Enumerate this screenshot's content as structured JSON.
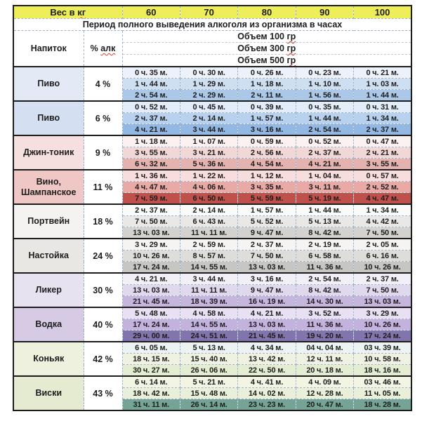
{
  "colors": {
    "header_yellow": "#eeee58",
    "solid_border": "#1c1c1c",
    "dashed_line": "#9db3c9",
    "spellcheck_red": "#d93a2f",
    "text": "#1d1d1d",
    "page_bg": "#ffffff"
  },
  "header": {
    "weight_label": {
      "text": "Вес в ",
      "misspelled": "кг"
    },
    "weights": [
      "60",
      "70",
      "80",
      "90",
      "100"
    ],
    "period_title": "Период полного выведения алкоголя из организма в часах",
    "drink_col_label": "Напиток",
    "pct_col_label": {
      "text": "% ",
      "misspelled": "алк"
    },
    "volume_lines": [
      {
        "text": "Объем 100 ",
        "misspelled": "гр"
      },
      {
        "text": "Объем 300 ",
        "misspelled": "гр"
      },
      {
        "text": "Объем 500 ",
        "misspelled": "гр"
      }
    ]
  },
  "chart_data": {
    "type": "table",
    "title": "Период полного выведения алкоголя из организма в часах",
    "weights_kg": [
      60,
      70,
      80,
      90,
      100
    ],
    "volumes_g": [
      100,
      300,
      500
    ],
    "sections": [
      {
        "drink": "Пиво",
        "percent": "4 %",
        "label_bg": "#e3eaf5",
        "row_bgs": [
          "#edf2fa",
          "#cfdff2",
          "#abc8e8"
        ],
        "rows": [
          [
            "0 ч. 35 м.",
            "0 ч. 30 м.",
            "0 ч. 26 м.",
            "0 ч. 23 м.",
            "0 ч. 21 м."
          ],
          [
            "1 ч. 44 м.",
            "1 ч. 29 м.",
            "1 ч. 18 м.",
            "1 ч. 10 м.",
            "1 ч. 03 м."
          ],
          [
            "2 ч. 54 м.",
            "2 ч. 29 м.",
            "2 ч. 11 м.",
            "1 ч. 56 м.",
            "1 ч. 44 м."
          ]
        ]
      },
      {
        "drink": "Пиво",
        "percent": "6 %",
        "label_bg": "#d4e0f1",
        "row_bgs": [
          "#e2edf9",
          "#b7d1ee",
          "#92b8e3"
        ],
        "rows": [
          [
            "0 ч. 52 м.",
            "0 ч. 45 м.",
            "0 ч. 39 м.",
            "0 ч. 35 м.",
            "0 ч. 31 м."
          ],
          [
            "2 ч. 37 м.",
            "2 ч. 14 м.",
            "1 ч. 57 м.",
            "1 ч. 44 м.",
            "1 ч. 34 м."
          ],
          [
            "4 ч. 21 м.",
            "3 ч. 44 м.",
            "3 ч. 16 м.",
            "2 ч. 54 м.",
            "2 ч. 37 м."
          ]
        ]
      },
      {
        "drink": "Джин-тоник",
        "percent": "9 %",
        "label_bg": "#f6e0df",
        "row_bgs": [
          "#faf1f0",
          "#f1d7d5",
          "#e5b3af"
        ],
        "rows": [
          [
            "1 ч. 18 м.",
            "1 ч. 07 м.",
            "0 ч. 59 м.",
            "0 ч. 52 м.",
            "0 ч. 47 м."
          ],
          [
            "3 ч. 55 м.",
            "3 ч. 21 м.",
            "2 ч. 56 м.",
            "2 ч. 37 м.",
            "2 ч. 21 м."
          ],
          [
            "6 ч. 32 м.",
            "5 ч. 36 м.",
            "4 ч. 54 м.",
            "4 ч. 21 м.",
            "3 ч. 55 м."
          ]
        ]
      },
      {
        "drink": "Вино,\nШампанское",
        "percent": "11 %",
        "label_bg": "#efc7c5",
        "row_bgs": [
          "#f7dddb",
          "#e9aaa6",
          "#c0504a"
        ],
        "rows": [
          [
            "1 ч. 36 м.",
            "1 ч. 22 м.",
            "1 ч. 12 м.",
            "1 ч. 04 м.",
            "0 ч. 57 м."
          ],
          [
            "4 ч. 47 м.",
            "4 ч. 06 м.",
            "3 ч. 35 м.",
            "3 ч. 11 м.",
            "2 ч. 52 м."
          ],
          [
            "7 ч. 59 м.",
            "6 ч. 50 м.",
            "5 ч. 59 м.",
            "5 ч. 19 м.",
            "4 ч. 47 м."
          ]
        ]
      },
      {
        "drink": "Портвейн",
        "percent": "18 %",
        "label_bg": "#f5f3f1",
        "row_bgs": [
          "#fafaf9",
          "#e9e8e6",
          "#d3d2cf"
        ],
        "rows": [
          [
            "2 ч. 37 м.",
            "2 ч. 14 м.",
            "1 ч. 57 м.",
            "1 ч. 44 м.",
            "1 ч. 34 м."
          ],
          [
            "7 ч. 50 м.",
            "6 ч. 43 м.",
            "5 ч. 52 м.",
            "5 ч. 13 м.",
            "4 ч. 42 м."
          ],
          [
            "13 ч. 03 м.",
            "11 ч. 11 м.",
            "9 ч. 47 м.",
            "8 ч. 42 м.",
            "7 ч. 50 м."
          ]
        ]
      },
      {
        "drink": "Настойка",
        "percent": "24 %",
        "label_bg": "#e9e7e3",
        "row_bgs": [
          "#f5f4f2",
          "#dfddda",
          "#c8c6c2"
        ],
        "rows": [
          [
            "3 ч. 29 м.",
            "2 ч. 59 м.",
            "2 ч. 37 м.",
            "2 ч. 19 м.",
            "2 ч. 05 м."
          ],
          [
            "10 ч. 26 м.",
            "8 ч. 57 м.",
            "7 ч. 50 м.",
            "6 ч. 58 м.",
            "6 ч. 16 м."
          ],
          [
            "17 ч. 24 м.",
            "14 ч. 55 м.",
            "13 ч. 03 м.",
            "11 ч. 36 м.",
            "10 ч. 26 м."
          ]
        ]
      },
      {
        "drink": "Ликер",
        "percent": "30 %",
        "label_bg": "#e7e2ef",
        "row_bgs": [
          "#f2eff7",
          "#e0d8ed",
          "#c6b6de"
        ],
        "rows": [
          [
            "4 ч. 21 м.",
            "3 ч. 44 м.",
            "3 ч. 16 м.",
            "2 ч. 54 м.",
            "2 ч. 37 м."
          ],
          [
            "13 ч. 03 м.",
            "11 ч. 11 м.",
            "9 ч. 47 м.",
            "8 ч. 42 м.",
            "7 ч. 50 м."
          ],
          [
            "21 ч. 45 м.",
            "18 ч. 39 м.",
            "16 ч. 19 м.",
            "14 ч. 30 м.",
            "13 ч. 03 м."
          ]
        ]
      },
      {
        "drink": "Водка",
        "percent": "40 %",
        "label_bg": "#d6cae4",
        "row_bgs": [
          "#e9e1f3",
          "#c4b2de",
          "#8274ad"
        ],
        "rows": [
          [
            "5 ч. 48 м.",
            "4 ч. 58 м.",
            "4 ч. 21 м.",
            "3 ч. 52 м.",
            "3 ч. 29 м."
          ],
          [
            "17 ч. 24 м.",
            "14 ч. 55 м.",
            "13 ч. 03 м.",
            "11 ч. 36 м.",
            "10 ч. 26 м."
          ],
          [
            "29 ч. 00 м.",
            "24 ч. 51 м.",
            "21 ч. 45 м.",
            "19 ч. 20 м.",
            "17 ч. 24 м."
          ]
        ]
      },
      {
        "drink": "Коньяк",
        "percent": "42 %",
        "label_bg": "#edf1dd",
        "row_bgs": [
          "#edf3f2",
          "#f0f2e1",
          "#e4edd2"
        ],
        "rows": [
          [
            "6 ч. 05 м.",
            "5 ч. 13 м.",
            "4 ч. 34 м.",
            "04 ч. 04 м.",
            "03 ч. 39 м."
          ],
          [
            "18 ч. 15 м.",
            "15 ч. 40 м.",
            "13 ч. 42 м.",
            "12 ч. 11 м.",
            "10 ч. 58 м."
          ],
          [
            "30 ч. 27 м.",
            "26 ч. 06 м.",
            "22 ч. 50 м.",
            "20 ч. 18 м.",
            "18 ч. 16 м."
          ]
        ]
      },
      {
        "drink": "Виски",
        "percent": "43 %",
        "label_bg": "#e5ebd1",
        "row_bgs": [
          "#f3f5e4",
          "#e9efd8",
          "#75a497"
        ],
        "rows": [
          [
            "6 ч. 14 м.",
            "5 ч. 21 м.",
            "4 ч. 41 м.",
            "4 ч. 09 м.",
            "03 ч. 46 м."
          ],
          [
            "18 ч. 42 м.",
            "15 ч. 48 м.",
            "14 ч. 02 м.",
            "12 ч. 28 м.",
            "11 ч. 05 м."
          ],
          [
            "31 ч. 11 м.",
            "26 ч. 14 м.",
            "23 ч. 23 м.",
            "20 ч. 47 м.",
            "18 ч. 28 м."
          ]
        ]
      }
    ]
  }
}
